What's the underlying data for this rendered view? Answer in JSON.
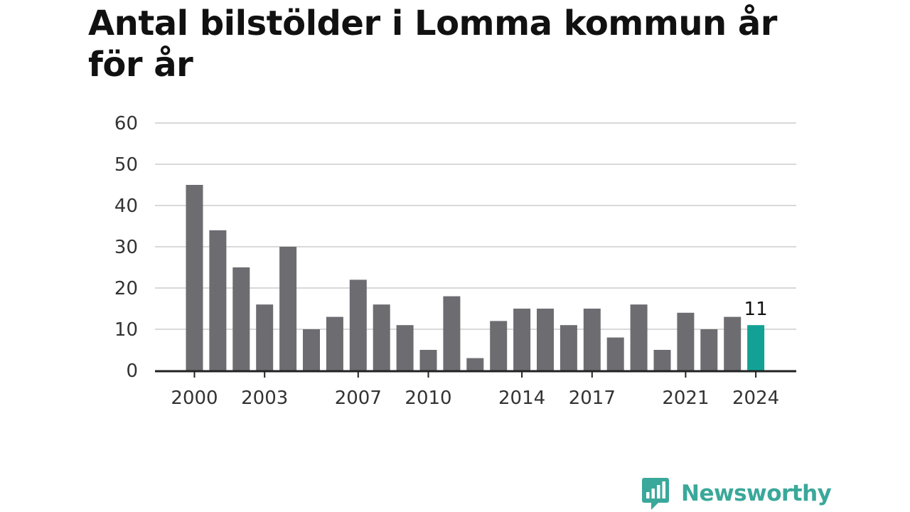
{
  "title": "Antal bilstölder i Lomma kommun år för år",
  "brand": {
    "name": "Newsworthy",
    "color": "#3aa89a",
    "icon": "bar-chart-speech-bubble-icon"
  },
  "colors": {
    "bar": "#6d6c71",
    "highlight": "#13a195",
    "grid": "#d9d9d9",
    "axis": "#222222",
    "text": "#333333"
  },
  "chart_data": {
    "type": "bar",
    "title": "Antal bilstölder i Lomma kommun år för år",
    "xlabel": "",
    "ylabel": "",
    "ylim": [
      0,
      60
    ],
    "yticks": [
      0,
      10,
      20,
      30,
      40,
      50,
      60
    ],
    "xtick_labels": [
      "2000",
      "2003",
      "2007",
      "2010",
      "2014",
      "2017",
      "2021",
      "2024"
    ],
    "grid": true,
    "categories": [
      "2000",
      "2001",
      "2002",
      "2003",
      "2004",
      "2005",
      "2006",
      "2007",
      "2008",
      "2009",
      "2010",
      "2011",
      "2012",
      "2013",
      "2014",
      "2015",
      "2016",
      "2017",
      "2018",
      "2019",
      "2020",
      "2021",
      "2022",
      "2023",
      "2024"
    ],
    "values": [
      45,
      34,
      25,
      16,
      30,
      10,
      13,
      22,
      16,
      11,
      5,
      18,
      3,
      12,
      15,
      15,
      11,
      15,
      8,
      16,
      5,
      14,
      10,
      13,
      11
    ],
    "highlight": {
      "category": "2024",
      "label": "11"
    }
  }
}
